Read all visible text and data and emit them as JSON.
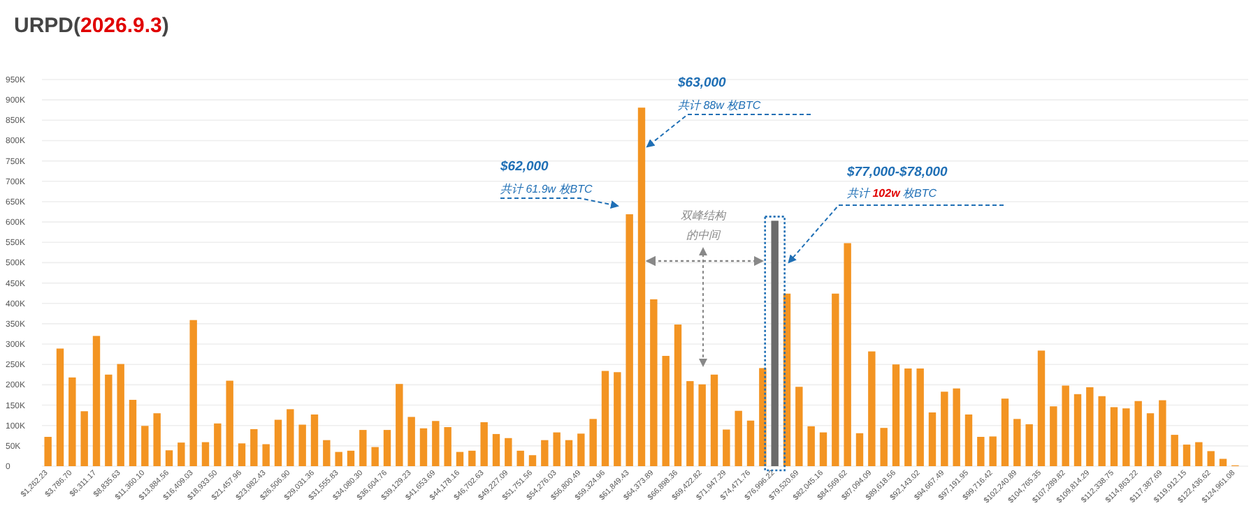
{
  "chart_data": {
    "type": "bar",
    "title": "URPD(**2026.9.3**)",
    "categories": [
      "$1,262.23",
      null,
      "$3,786.70",
      null,
      "$6,311.17",
      null,
      "$8,835.63",
      null,
      "$11,360.10",
      null,
      "$13,884.56",
      null,
      "$16,409.03",
      null,
      "$18,933.50",
      null,
      "$21,457.96",
      null,
      "$23,982.43",
      null,
      "$26,506.90",
      null,
      "$29,031.36",
      null,
      "$31,555.83",
      null,
      "$34,080.30",
      null,
      "$36,604.76",
      null,
      "$39,129.23",
      null,
      "$41,653.69",
      null,
      "$44,178.16",
      null,
      "$46,702.63",
      null,
      "$49,227.09",
      null,
      "$51,751.56",
      null,
      "$54,276.03",
      null,
      "$56,800.49",
      null,
      "$59,324.96",
      null,
      "$61,849.43",
      null,
      "$64,373.89",
      null,
      "$66,898.36",
      null,
      "$69,422.82",
      null,
      "$71,947.29",
      null,
      "$74,471.76",
      null,
      "$76,996.22",
      null,
      "$79,520.69",
      null,
      "$82,045.16",
      null,
      "$84,569.62",
      null,
      "$87,094.09",
      null,
      "$89,618.56",
      null,
      "$92,143.02",
      null,
      "$94,667.49",
      null,
      "$97,191.95",
      null,
      "$99,716.42",
      null,
      "$102,240.89",
      null,
      "$104,765.35",
      null,
      "$107,289.82",
      null,
      "$109,814.29",
      null,
      "$112,338.75",
      null,
      "$114,863.22",
      null,
      "$117,387.69",
      null,
      "$119,912.15",
      null,
      "$122,436.62",
      null,
      "$124,961.08"
    ],
    "values": [
      72000,
      289000,
      218000,
      135000,
      320000,
      225000,
      251000,
      163000,
      99000,
      130000,
      39000,
      58000,
      359000,
      59000,
      105000,
      210000,
      56000,
      91000,
      54000,
      114000,
      140000,
      102000,
      127000,
      64000,
      35000,
      38000,
      89000,
      47000,
      89000,
      202000,
      121000,
      93000,
      111000,
      96000,
      35000,
      38000,
      108000,
      79000,
      69000,
      38000,
      27000,
      64000,
      83000,
      64000,
      80000,
      116000,
      234000,
      231000,
      619000,
      881000,
      410000,
      271000,
      348000,
      209000,
      201000,
      225000,
      90000,
      136000,
      112000,
      241000,
      603000,
      424000,
      195000,
      98000,
      83000,
      424000,
      548000,
      81000,
      282000,
      94000,
      250000,
      240000,
      240000,
      132000,
      183000,
      191000,
      127000,
      72000,
      73000,
      166000,
      116000,
      103000,
      284000,
      147000,
      198000,
      177000,
      194000,
      172000,
      145000,
      142000,
      160000,
      130000,
      162000,
      77000,
      53000,
      59000,
      37000,
      18000,
      2000
    ],
    "colors": [
      "#f39422",
      "#f39422",
      "#f39422",
      "#f39422",
      "#f39422",
      "#f39422",
      "#f39422",
      "#f39422",
      "#f39422",
      "#f39422",
      "#f39422",
      "#f39422",
      "#f39422",
      "#f39422",
      "#f39422",
      "#f39422",
      "#f39422",
      "#f39422",
      "#f39422",
      "#f39422",
      "#f39422",
      "#f39422",
      "#f39422",
      "#f39422",
      "#f39422",
      "#f39422",
      "#f39422",
      "#f39422",
      "#f39422",
      "#f39422",
      "#f39422",
      "#f39422",
      "#f39422",
      "#f39422",
      "#f39422",
      "#f39422",
      "#f39422",
      "#f39422",
      "#f39422",
      "#f39422",
      "#f39422",
      "#f39422",
      "#f39422",
      "#f39422",
      "#f39422",
      "#f39422",
      "#f39422",
      "#f39422",
      "#f39422",
      "#f39422",
      "#f39422",
      "#f39422",
      "#f39422",
      "#f39422",
      "#f39422",
      "#f39422",
      "#f39422",
      "#f39422",
      "#f39422",
      "#f39422",
      "#6b6b6b",
      "#f39422",
      "#f39422",
      "#f39422",
      "#f39422",
      "#f39422",
      "#f39422",
      "#f39422",
      "#f39422",
      "#f39422",
      "#f39422",
      "#f39422",
      "#f39422",
      "#f39422",
      "#f39422",
      "#f39422",
      "#f39422",
      "#f39422",
      "#f39422",
      "#f39422",
      "#f39422",
      "#f39422",
      "#f39422",
      "#f39422",
      "#f39422",
      "#f39422",
      "#f39422",
      "#f39422",
      "#f39422",
      "#f39422",
      "#f39422",
      "#f39422",
      "#f39422",
      "#f39422",
      "#f39422",
      "#f39422",
      "#f39422",
      "#f39422",
      "#f39422"
    ],
    "ylim": [
      0,
      950000
    ],
    "yticks": [
      0,
      {
        "value": 50000,
        "label": "50K"
      },
      {
        "value": 100000,
        "label": "100K"
      },
      {
        "value": 150000,
        "label": "150K"
      },
      {
        "value": 200000,
        "label": "200K"
      },
      {
        "value": 250000,
        "label": "250K"
      },
      {
        "value": 300000,
        "label": "300K"
      },
      {
        "value": 350000,
        "label": "350K"
      },
      {
        "value": 400000,
        "label": "400K"
      },
      {
        "value": 450000,
        "label": "450K"
      },
      {
        "value": 500000,
        "label": "500K"
      },
      {
        "value": 550000,
        "label": "550K"
      },
      {
        "value": 600000,
        "label": "600K"
      },
      {
        "value": 650000,
        "label": "650K"
      },
      {
        "value": 700000,
        "label": "700K"
      },
      {
        "value": 750000,
        "label": "750K"
      },
      {
        "value": 800000,
        "label": "800K"
      },
      {
        "value": 850000,
        "label": "850K"
      },
      {
        "value": 900000,
        "label": "900K"
      },
      {
        "value": 950000,
        "label": "950K"
      }
    ],
    "grid": "y",
    "annotations": [
      "$62,000",
      "共计 61.9w 枚BTC",
      "$63,000",
      "共计 88w 枚BTC",
      "$77,000-$78,000",
      "共计 **102w** 枚BTC",
      "双峰结构",
      "的中间"
    ]
  }
}
